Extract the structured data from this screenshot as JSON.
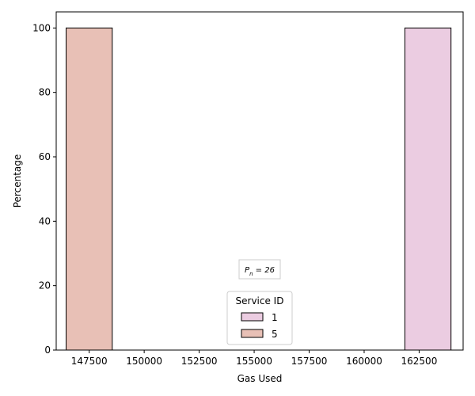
{
  "chart_data": {
    "type": "bar",
    "title": "",
    "xlabel": "Gas Used",
    "ylabel": "Percentage",
    "xlim": [
      146000,
      164500
    ],
    "ylim": [
      0,
      105
    ],
    "bar_width": 2100,
    "xticks": [
      147500,
      150000,
      152500,
      155000,
      157500,
      160000,
      162500
    ],
    "yticks": [
      0,
      20,
      40,
      60,
      80,
      100
    ],
    "series": [
      {
        "name": "1",
        "color": "#ebcce1",
        "x": [
          162900
        ],
        "values": [
          100
        ]
      },
      {
        "name": "5",
        "color": "#e8c0b6",
        "x": [
          147500
        ],
        "values": [
          100
        ]
      }
    ],
    "legend": {
      "title": "Service ID",
      "placement": "bottom-center",
      "entries": [
        "1",
        "5"
      ]
    },
    "annotation": "P_n = 26",
    "grid": false
  }
}
